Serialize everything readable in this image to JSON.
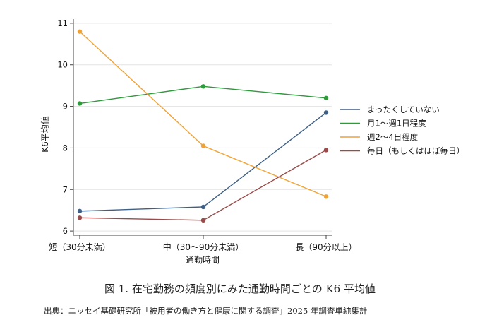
{
  "chart_data": {
    "type": "line",
    "categories": [
      "短（30分未満）",
      "中（30〜90分未満）",
      "長（90分以上）"
    ],
    "xlabel": "通勤時間",
    "ylabel": "K6平均値",
    "ylim": [
      5.9,
      11.1
    ],
    "yticks": [
      6,
      7,
      8,
      9,
      10,
      11
    ],
    "legend_position": "right",
    "series": [
      {
        "name": "まったくしていない",
        "color": "#3e5f86",
        "values": [
          6.48,
          6.58,
          8.85
        ]
      },
      {
        "name": "月1〜週1日程度",
        "color": "#2e9a3c",
        "values": [
          9.07,
          9.48,
          9.2
        ]
      },
      {
        "name": "週2〜4日程度",
        "color": "#f0a234",
        "values": [
          10.8,
          8.05,
          6.83
        ]
      },
      {
        "name": "毎日（もしくはほぼ毎日）",
        "color": "#9a4a48",
        "values": [
          6.32,
          6.26,
          7.95
        ]
      }
    ]
  },
  "figure_caption": "図 1.  在宅勤務の頻度別にみた通勤時間ごとの K6 平均値",
  "source_note": "出典：ニッセイ基礎研究所「被用者の働き方と健康に関する調査」2025 年調査単純集計"
}
